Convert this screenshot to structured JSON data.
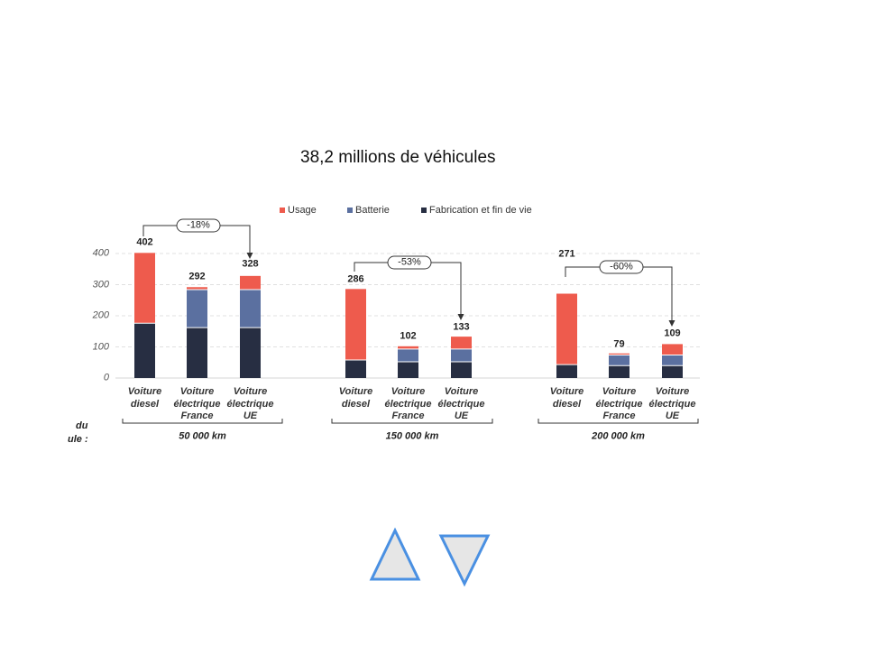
{
  "chart_data": {
    "type": "bar",
    "stacked": true,
    "title": "38,2 millions de véhicules",
    "ylim": [
      0,
      400
    ],
    "yticks": [
      0,
      100,
      200,
      300,
      400
    ],
    "grid": true,
    "legend_position": "top",
    "categories": [
      "Voiture\ndiesel",
      "Voiture\nélectrique\nFrance",
      "Voiture\nélectrique\nUE",
      "Voiture\ndiesel",
      "Voiture\nélectrique\nFrance",
      "Voiture\nélectrique\nUE",
      "Voiture\ndiesel",
      "Voiture\nélectrique\nFrance",
      "Voiture\nélectrique\nUE"
    ],
    "totals": [
      402,
      292,
      328,
      286,
      102,
      133,
      271,
      79,
      109
    ],
    "groups": [
      {
        "label": "50 000 km",
        "change": "-18%"
      },
      {
        "label": "150 000 km",
        "change": "-53%"
      },
      {
        "label": "200 000 km",
        "change": "-60%"
      }
    ],
    "series": [
      {
        "name": "Usage",
        "color": "#ee5b4d",
        "values": [
          226,
          8,
          44,
          228,
          9,
          40,
          228,
          5,
          35
        ]
      },
      {
        "name": "Batterie",
        "color": "#5b70a0",
        "values": [
          0,
          122,
          122,
          0,
          41,
          41,
          0,
          34,
          34
        ]
      },
      {
        "name": "Fabrication et fin de vie",
        "color": "#272e42",
        "values": [
          176,
          162,
          162,
          58,
          52,
          52,
          43,
          40,
          40
        ]
      }
    ]
  },
  "axis_caption_fragment": {
    "line1": "du",
    "line2": "ule :"
  },
  "navigation": {
    "previous_icon": "triangle-up-icon",
    "next_icon": "triangle-down-icon",
    "accent": "#4a90e2",
    "fill": "#e6e6e6"
  }
}
